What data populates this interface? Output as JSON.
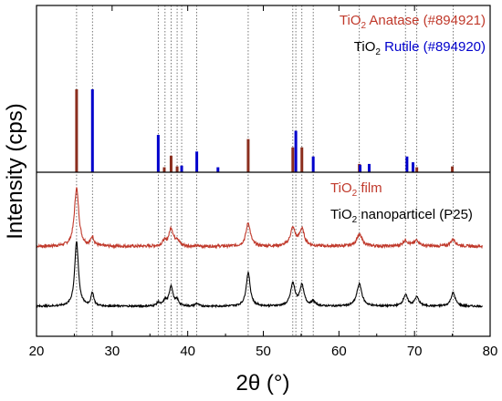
{
  "chart_data": {
    "type": "line",
    "xlabel": "2θ (°)",
    "ylabel": "Intensity (cps)",
    "xlim": [
      20,
      80
    ],
    "x_ticks": [
      "20",
      "30",
      "40",
      "50",
      "60",
      "70",
      "80"
    ],
    "grid": false,
    "legend_top": {
      "anatase": {
        "prefix": "TiO",
        "sub": "2",
        "suffix": " Anatase (#894921)",
        "color": "#c0392b"
      },
      "rutile": {
        "prefix": "TiO",
        "sub": "2",
        "mid": " ",
        "suffix": "Rutile (#894920)",
        "color": "#0000cc"
      }
    },
    "legend_bottom": {
      "film": {
        "prefix": "TiO",
        "sub": "2",
        "suffix": " film",
        "color": "#c0392b"
      },
      "nanoparticle": {
        "prefix": "TiO",
        "sub": "2",
        "suffix": " nanoparticel (P25)",
        "color": "#000000"
      }
    },
    "reference_lines_2theta": [
      25.3,
      27.4,
      36.1,
      37.0,
      37.8,
      38.6,
      39.2,
      41.2,
      48.0,
      53.9,
      54.3,
      55.1,
      56.6,
      62.7,
      68.8,
      70.3,
      75.1
    ],
    "series": [
      {
        "name": "TiO2 Anatase (#894921)",
        "kind": "stick",
        "color": "#8b2e1e",
        "peaks": [
          [
            25.3,
            100
          ],
          [
            36.9,
            6
          ],
          [
            37.8,
            20
          ],
          [
            38.6,
            7
          ],
          [
            48.0,
            40
          ],
          [
            53.9,
            30
          ],
          [
            55.1,
            30
          ],
          [
            62.7,
            10
          ],
          [
            70.3,
            6
          ],
          [
            75.0,
            7
          ]
        ]
      },
      {
        "name": "TiO2 Rutile (#894920)",
        "kind": "stick",
        "color": "#0000cc",
        "peaks": [
          [
            27.4,
            100
          ],
          [
            36.1,
            45
          ],
          [
            39.2,
            8
          ],
          [
            41.2,
            25
          ],
          [
            44.0,
            6
          ],
          [
            54.3,
            50
          ],
          [
            56.6,
            19
          ],
          [
            62.8,
            9
          ],
          [
            64.0,
            10
          ],
          [
            69.0,
            19
          ],
          [
            69.8,
            12
          ]
        ]
      },
      {
        "name": "TiO2 film",
        "kind": "pattern",
        "color": "#c0392b",
        "baseline": 0.12,
        "noise": 0.05,
        "peaks": [
          [
            25.3,
            1.0,
            0.35
          ],
          [
            27.4,
            0.15,
            0.25
          ],
          [
            36.9,
            0.08,
            0.3
          ],
          [
            37.8,
            0.3,
            0.35
          ],
          [
            38.6,
            0.1,
            0.3
          ],
          [
            48.0,
            0.4,
            0.35
          ],
          [
            53.9,
            0.3,
            0.4
          ],
          [
            55.1,
            0.28,
            0.4
          ],
          [
            62.7,
            0.2,
            0.45
          ],
          [
            68.8,
            0.1,
            0.4
          ],
          [
            70.3,
            0.1,
            0.4
          ],
          [
            75.1,
            0.12,
            0.4
          ]
        ]
      },
      {
        "name": "TiO2 nanoparticel (P25)",
        "kind": "pattern",
        "color": "#000000",
        "baseline": 0.12,
        "noise": 0.04,
        "peaks": [
          [
            25.3,
            1.45,
            0.3
          ],
          [
            27.4,
            0.3,
            0.22
          ],
          [
            36.1,
            0.08,
            0.25
          ],
          [
            37.0,
            0.12,
            0.25
          ],
          [
            37.8,
            0.45,
            0.3
          ],
          [
            38.6,
            0.12,
            0.25
          ],
          [
            41.2,
            0.06,
            0.25
          ],
          [
            48.0,
            0.75,
            0.32
          ],
          [
            53.9,
            0.5,
            0.35
          ],
          [
            55.1,
            0.45,
            0.35
          ],
          [
            56.6,
            0.1,
            0.3
          ],
          [
            62.7,
            0.5,
            0.4
          ],
          [
            68.8,
            0.25,
            0.35
          ],
          [
            70.3,
            0.2,
            0.35
          ],
          [
            75.1,
            0.3,
            0.35
          ]
        ]
      }
    ]
  }
}
